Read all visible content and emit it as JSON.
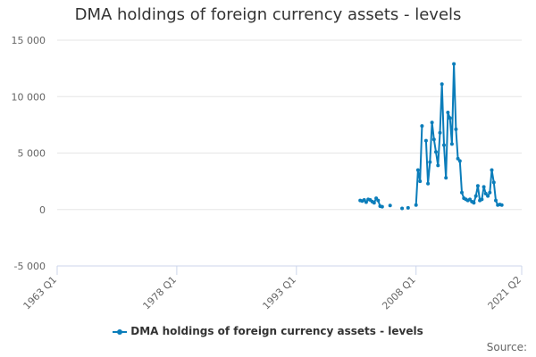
{
  "colors": {
    "series": "#0b7dba",
    "grid": "#e6e6e6",
    "axis": "#ccd6eb",
    "text": "#666666"
  },
  "source_label": "Source:",
  "chart_data": {
    "type": "line",
    "title": "DMA holdings of foreign currency assets - levels",
    "xlabel": "",
    "ylabel": "",
    "ylim": [
      -5000,
      15000
    ],
    "xlim": [
      "1963 Q1",
      "2021 Q2"
    ],
    "yticks": [
      -5000,
      0,
      5000,
      10000,
      15000
    ],
    "ytick_labels": [
      "-5 000",
      "0",
      "5 000",
      "10 000",
      "15 000"
    ],
    "xticks": [
      "1963 Q1",
      "1978 Q1",
      "1993 Q1",
      "2008 Q1",
      "2021 Q2"
    ],
    "grid": true,
    "legend_position": "bottom-center",
    "series": [
      {
        "name": "DMA holdings of foreign currency assets - levels",
        "points": [
          [
            "2001 Q1",
            800
          ],
          [
            "2001 Q2",
            750
          ],
          [
            "2001 Q3",
            850
          ],
          [
            "2001 Q4",
            650
          ],
          [
            "2002 Q1",
            900
          ],
          [
            "2002 Q2",
            850
          ],
          [
            "2002 Q3",
            700
          ],
          [
            "2002 Q4",
            600
          ],
          [
            "2003 Q1",
            1000
          ],
          [
            "2003 Q2",
            800
          ],
          [
            "2003 Q3",
            300
          ],
          [
            "2003 Q4",
            250
          ],
          [
            "2004 Q4",
            350
          ],
          [
            "2006 Q2",
            100
          ],
          [
            "2007 Q1",
            150
          ],
          [
            "2008 Q1",
            400
          ],
          [
            "2008 Q2",
            3500
          ],
          [
            "2008 Q3",
            2500
          ],
          [
            "2008 Q4",
            7400
          ],
          [
            "2009 Q2",
            6100
          ],
          [
            "2009 Q3",
            2300
          ],
          [
            "2009 Q4",
            4200
          ],
          [
            "2010 Q1",
            7700
          ],
          [
            "2010 Q2",
            6200
          ],
          [
            "2010 Q3",
            5100
          ],
          [
            "2010 Q4",
            3900
          ],
          [
            "2011 Q1",
            6800
          ],
          [
            "2011 Q2",
            11100
          ],
          [
            "2011 Q3",
            5700
          ],
          [
            "2011 Q4",
            2800
          ],
          [
            "2012 Q1",
            8600
          ],
          [
            "2012 Q2",
            8100
          ],
          [
            "2012 Q3",
            5800
          ],
          [
            "2012 Q4",
            12900
          ],
          [
            "2013 Q1",
            7100
          ],
          [
            "2013 Q2",
            4500
          ],
          [
            "2013 Q3",
            4300
          ],
          [
            "2013 Q4",
            1500
          ],
          [
            "2014 Q1",
            1000
          ],
          [
            "2014 Q2",
            900
          ],
          [
            "2014 Q3",
            800
          ],
          [
            "2014 Q4",
            900
          ],
          [
            "2015 Q1",
            700
          ],
          [
            "2015 Q2",
            600
          ],
          [
            "2015 Q3",
            1200
          ],
          [
            "2015 Q4",
            2100
          ],
          [
            "2016 Q1",
            800
          ],
          [
            "2016 Q2",
            900
          ],
          [
            "2016 Q3",
            2000
          ],
          [
            "2016 Q4",
            1400
          ],
          [
            "2017 Q1",
            1200
          ],
          [
            "2017 Q2",
            1500
          ],
          [
            "2017 Q3",
            3500
          ],
          [
            "2017 Q4",
            2400
          ],
          [
            "2018 Q1",
            800
          ],
          [
            "2018 Q2",
            400
          ],
          [
            "2018 Q3",
            450
          ],
          [
            "2018 Q4",
            400
          ]
        ]
      }
    ]
  }
}
